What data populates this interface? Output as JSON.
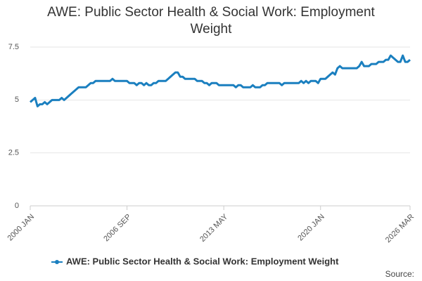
{
  "chart_data": {
    "type": "line",
    "title": "AWE: Public Sector Health & Social Work: Employment Weight",
    "source": "Source:",
    "categories": [
      "2000 JAN",
      null,
      null,
      null,
      null,
      null,
      null,
      null,
      null,
      null,
      null,
      null,
      null,
      null,
      null,
      null,
      null,
      null,
      null,
      null,
      null,
      null,
      null,
      null,
      null,
      null,
      null,
      null,
      null,
      null,
      null,
      null,
      null,
      null,
      null,
      null,
      null,
      null,
      null,
      null,
      "2006 SEP",
      null,
      null,
      null,
      null,
      null,
      null,
      null,
      null,
      null,
      null,
      null,
      null,
      null,
      null,
      null,
      null,
      null,
      null,
      null,
      null,
      null,
      null,
      null,
      null,
      null,
      null,
      null,
      null,
      null,
      null,
      null,
      null,
      null,
      null,
      null,
      null,
      null,
      null,
      null,
      "2013 MAY",
      null,
      null,
      null,
      null,
      null,
      null,
      null,
      null,
      null,
      null,
      null,
      null,
      null,
      null,
      null,
      null,
      null,
      null,
      null,
      null,
      null,
      null,
      null,
      null,
      null,
      null,
      null,
      null,
      null,
      null,
      null,
      null,
      null,
      null,
      null,
      null,
      null,
      null,
      null,
      "2020 JAN",
      null,
      null,
      null,
      null,
      null,
      null,
      null,
      null,
      null,
      null,
      null,
      null,
      null,
      null,
      null,
      null,
      null,
      null,
      null,
      null,
      null,
      null,
      null,
      null,
      null,
      null,
      null,
      null,
      null,
      null,
      null,
      null,
      null,
      null,
      null,
      null,
      "2026 MAR"
    ],
    "series": [
      {
        "name": "AWE: Public Sector Health & Social Work: Employment Weight",
        "color": "#1a7fbf",
        "values": [
          4.9,
          5.0,
          5.1,
          4.7,
          4.8,
          4.8,
          4.9,
          4.8,
          4.9,
          5.0,
          5.0,
          5.0,
          5.0,
          5.1,
          5.0,
          5.1,
          5.2,
          5.3,
          5.4,
          5.5,
          5.6,
          5.6,
          5.6,
          5.6,
          5.7,
          5.8,
          5.8,
          5.9,
          5.9,
          5.9,
          5.9,
          5.9,
          5.9,
          5.9,
          6.0,
          5.9,
          5.9,
          5.9,
          5.9,
          5.9,
          5.9,
          5.8,
          5.8,
          5.8,
          5.7,
          5.8,
          5.8,
          5.7,
          5.8,
          5.7,
          5.7,
          5.8,
          5.8,
          5.9,
          5.9,
          5.9,
          5.9,
          6.0,
          6.1,
          6.2,
          6.3,
          6.3,
          6.1,
          6.1,
          6.0,
          6.0,
          6.0,
          6.0,
          6.0,
          5.9,
          5.9,
          5.9,
          5.8,
          5.8,
          5.7,
          5.8,
          5.8,
          5.8,
          5.7,
          5.7,
          5.7,
          5.7,
          5.7,
          5.7,
          5.7,
          5.6,
          5.7,
          5.7,
          5.6,
          5.6,
          5.6,
          5.6,
          5.7,
          5.6,
          5.6,
          5.6,
          5.7,
          5.7,
          5.8,
          5.8,
          5.8,
          5.8,
          5.8,
          5.8,
          5.7,
          5.8,
          5.8,
          5.8,
          5.8,
          5.8,
          5.8,
          5.8,
          5.9,
          5.8,
          5.9,
          5.8,
          5.9,
          5.9,
          5.9,
          5.8,
          6.0,
          6.0,
          6.0,
          6.1,
          6.2,
          6.3,
          6.2,
          6.5,
          6.6,
          6.5,
          6.5,
          6.5,
          6.5,
          6.5,
          6.5,
          6.5,
          6.6,
          6.8,
          6.6,
          6.6,
          6.6,
          6.7,
          6.7,
          6.7,
          6.8,
          6.8,
          6.8,
          6.9,
          6.9,
          7.1,
          7.0,
          6.9,
          6.8,
          6.8,
          7.1,
          6.8,
          6.8,
          6.9
        ]
      }
    ],
    "ylim": [
      0,
      7.5
    ],
    "yticks": [
      0,
      2.5,
      5,
      7.5
    ],
    "grid": true,
    "legend": "bottom"
  }
}
